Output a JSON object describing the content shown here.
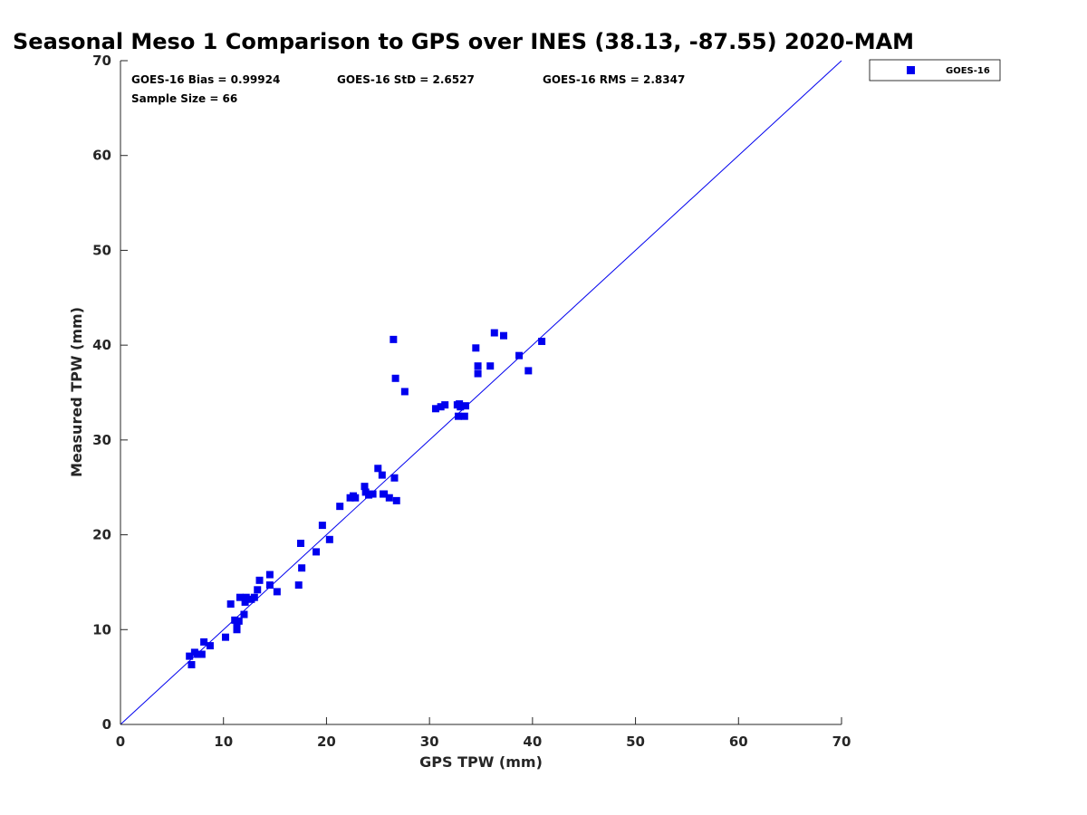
{
  "chart_data": {
    "type": "scatter",
    "title": "Seasonal Meso 1 Comparison to GPS over INES (38.13, -87.55) 2020-MAM",
    "xlabel": "GPS TPW (mm)",
    "ylabel": "Measured TPW (mm)",
    "xlim": [
      0,
      70
    ],
    "ylim": [
      0,
      70
    ],
    "x_ticks": [
      "0",
      "10",
      "20",
      "30",
      "40",
      "50",
      "60",
      "70"
    ],
    "y_ticks": [
      "0",
      "10",
      "20",
      "30",
      "40",
      "50",
      "60",
      "70"
    ],
    "grid": false,
    "legend_position": "outside-top-right",
    "reference_line": "1:1",
    "annotations": {
      "bias": "GOES-16 Bias = 0.99924",
      "std": "GOES-16 StD = 2.6527",
      "rms": "GOES-16 RMS = 2.8347",
      "sample_size": "Sample Size = 66"
    },
    "series": [
      {
        "name": "GOES-16",
        "color": "#0000ee",
        "marker": "square",
        "points": [
          [
            6.7,
            7.2
          ],
          [
            6.9,
            6.3
          ],
          [
            7.2,
            7.6
          ],
          [
            7.5,
            7.4
          ],
          [
            7.9,
            7.4
          ],
          [
            8.1,
            8.7
          ],
          [
            8.7,
            8.3
          ],
          [
            10.2,
            9.2
          ],
          [
            10.7,
            12.7
          ],
          [
            11.1,
            11.0
          ],
          [
            11.3,
            10.0
          ],
          [
            11.3,
            10.5
          ],
          [
            11.5,
            10.9
          ],
          [
            11.6,
            13.4
          ],
          [
            12.0,
            11.6
          ],
          [
            12.1,
            12.9
          ],
          [
            12.2,
            13.4
          ],
          [
            12.7,
            13.2
          ],
          [
            13.0,
            13.4
          ],
          [
            13.3,
            14.2
          ],
          [
            13.5,
            15.2
          ],
          [
            14.5,
            14.7
          ],
          [
            14.5,
            15.8
          ],
          [
            15.2,
            14.0
          ],
          [
            17.3,
            14.7
          ],
          [
            17.5,
            19.1
          ],
          [
            17.6,
            16.5
          ],
          [
            19.0,
            18.2
          ],
          [
            19.6,
            21.0
          ],
          [
            20.3,
            19.5
          ],
          [
            21.3,
            23.0
          ],
          [
            22.3,
            23.9
          ],
          [
            22.6,
            24.1
          ],
          [
            22.8,
            23.9
          ],
          [
            23.7,
            25.1
          ],
          [
            23.8,
            24.5
          ],
          [
            24.1,
            24.2
          ],
          [
            24.5,
            24.3
          ],
          [
            25.0,
            27.0
          ],
          [
            25.4,
            26.3
          ],
          [
            25.6,
            24.3
          ],
          [
            26.1,
            23.9
          ],
          [
            26.5,
            40.6
          ],
          [
            26.6,
            26.0
          ],
          [
            26.7,
            36.5
          ],
          [
            26.8,
            23.6
          ],
          [
            27.6,
            35.1
          ],
          [
            30.6,
            33.3
          ],
          [
            31.1,
            33.5
          ],
          [
            31.5,
            33.7
          ],
          [
            32.8,
            32.5
          ],
          [
            32.9,
            33.8
          ],
          [
            33.0,
            33.5
          ],
          [
            33.4,
            32.5
          ],
          [
            33.5,
            33.6
          ],
          [
            34.5,
            39.7
          ],
          [
            34.7,
            37.8
          ],
          [
            34.7,
            37.0
          ],
          [
            35.9,
            37.8
          ],
          [
            36.3,
            41.3
          ],
          [
            37.2,
            41.0
          ],
          [
            38.7,
            38.9
          ],
          [
            39.6,
            37.3
          ],
          [
            40.9,
            40.4
          ],
          [
            32.7,
            33.7
          ],
          [
            25.5,
            24.3
          ]
        ]
      }
    ]
  }
}
